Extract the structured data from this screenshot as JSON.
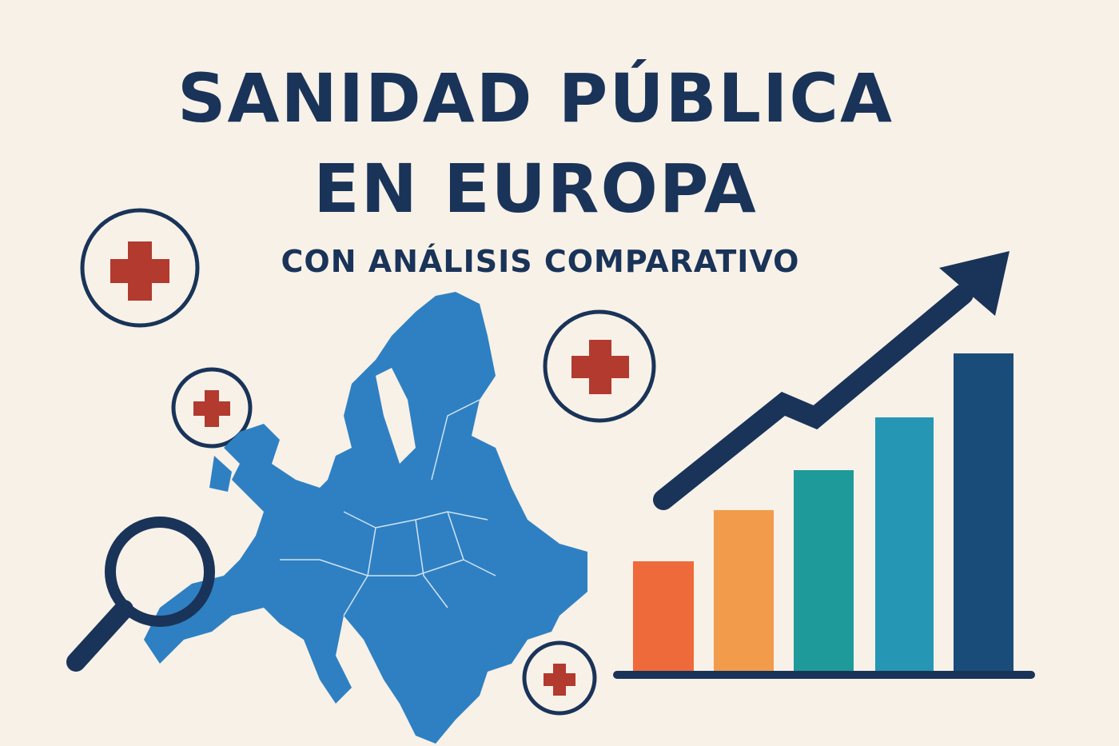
{
  "header": {
    "title": [
      "SANIDAD PÚBLICA",
      "EN EUROPA"
    ],
    "subtitle": "CON ANÁLISIS COMPARATIVO"
  }
}
